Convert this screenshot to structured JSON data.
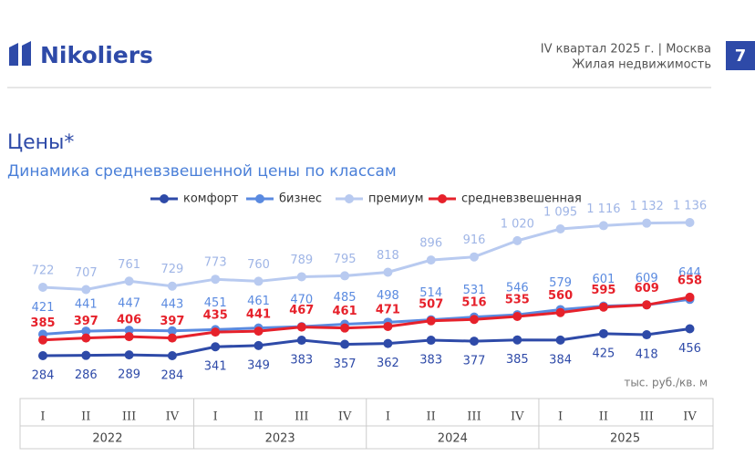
{
  "header": {
    "logo": "Nikoliers",
    "period": "IV квартал 2025 г. | Москва",
    "section": "Жилая недвижимость",
    "page": "7"
  },
  "chart_data": {
    "type": "line",
    "title": "Цены*",
    "subtitle": "Динамика средневзвешенной цены по классам",
    "unit": "тыс. руб./кв. м",
    "categories": [
      "I",
      "II",
      "III",
      "IV",
      "I",
      "II",
      "III",
      "IV",
      "I",
      "II",
      "III",
      "IV",
      "I",
      "II",
      "III",
      "IV"
    ],
    "years": [
      "2022",
      "2023",
      "2024",
      "2025"
    ],
    "series": [
      {
        "name": "комфорт",
        "color": "#2e4aa8",
        "values": [
          284,
          286,
          289,
          284,
          341,
          349,
          383,
          357,
          362,
          383,
          377,
          385,
          384,
          425,
          418,
          456
        ]
      },
      {
        "name": "бизнес",
        "color": "#5a8ae0",
        "values": [
          421,
          441,
          447,
          443,
          451,
          461,
          470,
          485,
          498,
          514,
          531,
          546,
          579,
          601,
          609,
          644
        ]
      },
      {
        "name": "премиум",
        "color": "#b8caf0",
        "values": [
          722,
          707,
          761,
          729,
          773,
          760,
          789,
          795,
          818,
          896,
          916,
          1020,
          1095,
          1116,
          1132,
          1136
        ],
        "value_labels": [
          "722",
          "707",
          "761",
          "729",
          "773",
          "760",
          "789",
          "795",
          "818",
          "896",
          "916",
          "1 020",
          "1 095",
          "1 116",
          "1 132",
          "1 136"
        ]
      },
      {
        "name": "средневзвешенная",
        "color": "#e6212b",
        "values": [
          385,
          397,
          406,
          397,
          435,
          441,
          467,
          461,
          471,
          507,
          516,
          535,
          560,
          595,
          609,
          658
        ]
      }
    ]
  }
}
